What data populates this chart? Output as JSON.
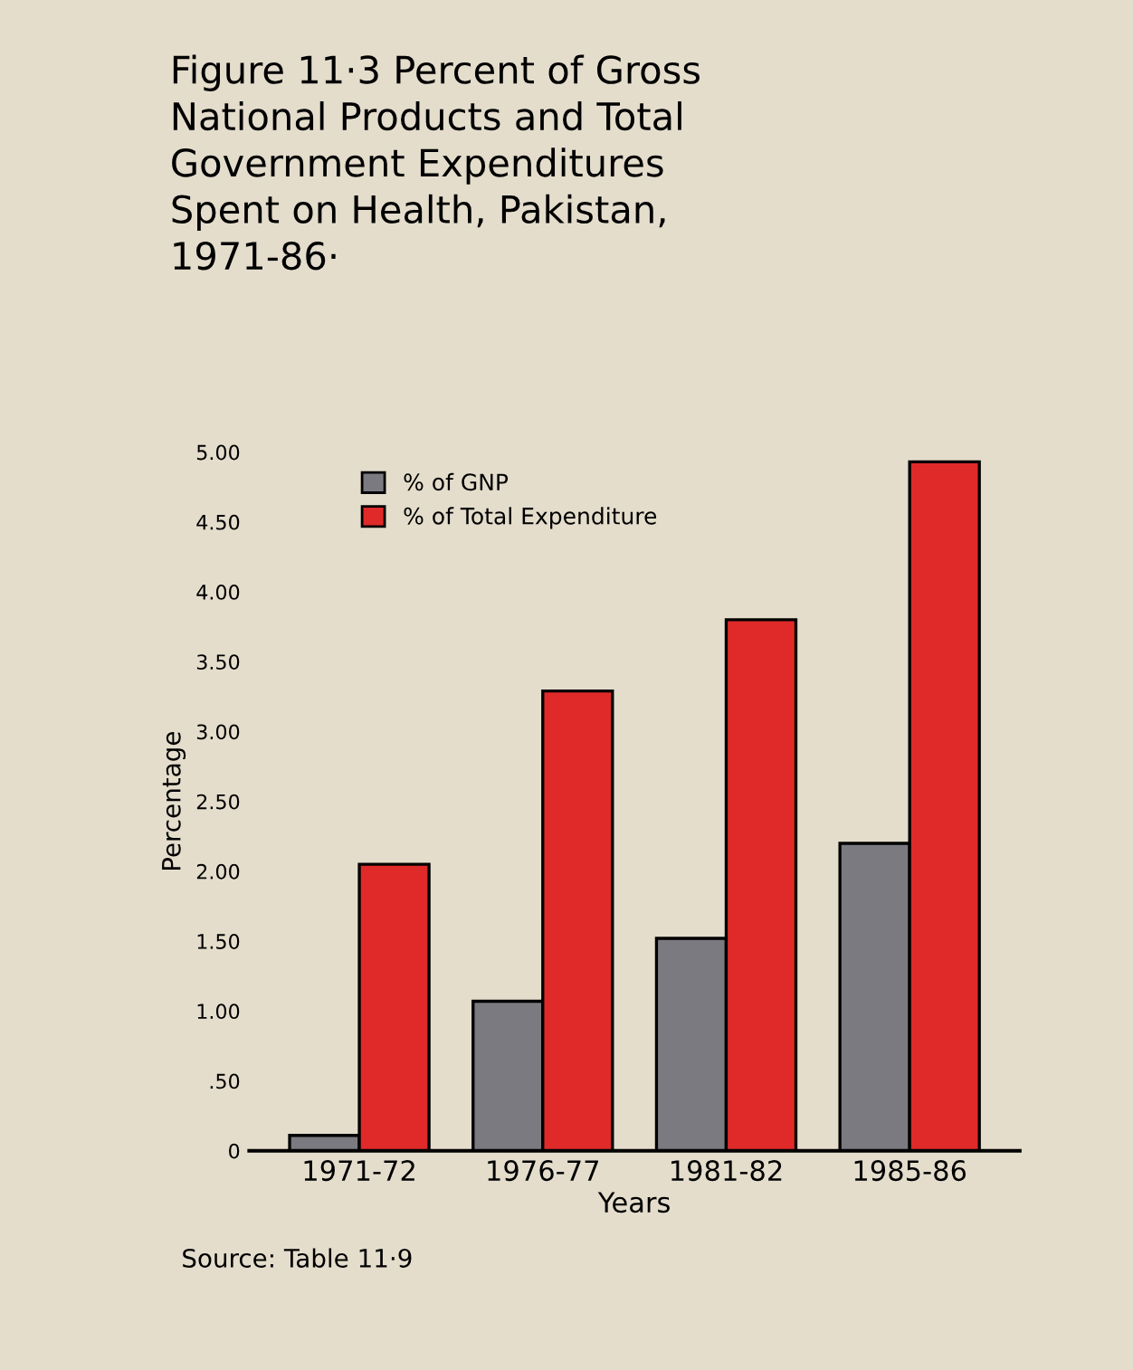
{
  "chart_data": {
    "type": "bar",
    "title": "Figure 11·3 Percent of Gross\nNational Products and Total\nGovernment Expenditures\nSpent on Health, Pakistan,\n1971-86·",
    "xlabel": "Years",
    "ylabel": "Percentage",
    "categories": [
      "1971-72",
      "1976-77",
      "1981-82",
      "1985-86"
    ],
    "series": [
      {
        "name": "% of GNP",
        "color": "#7a7a80",
        "values": [
          0.11,
          1.07,
          1.52,
          2.2
        ]
      },
      {
        "name": "% of Total Expenditure",
        "color": "#e02a2a",
        "values": [
          2.05,
          3.29,
          3.8,
          4.93
        ]
      }
    ],
    "ylim": [
      0,
      5
    ],
    "yticks": [
      0,
      {
        "value": 0.5,
        "label": ".50"
      },
      {
        "value": 1,
        "label": "1.00"
      },
      {
        "value": 1.5,
        "label": "1.50"
      },
      {
        "value": 2,
        "label": "2.00"
      },
      {
        "value": 2.5,
        "label": "2.50"
      },
      {
        "value": 3,
        "label": "3.00"
      },
      {
        "value": 3.5,
        "label": "3.50"
      },
      {
        "value": 4,
        "label": "4.00"
      },
      {
        "value": 4.5,
        "label": "4.50"
      },
      {
        "value": 5,
        "label": "5.00"
      }
    ],
    "legend": "top left",
    "grid": false,
    "annotations": [
      "Source: Table 11·9"
    ]
  }
}
